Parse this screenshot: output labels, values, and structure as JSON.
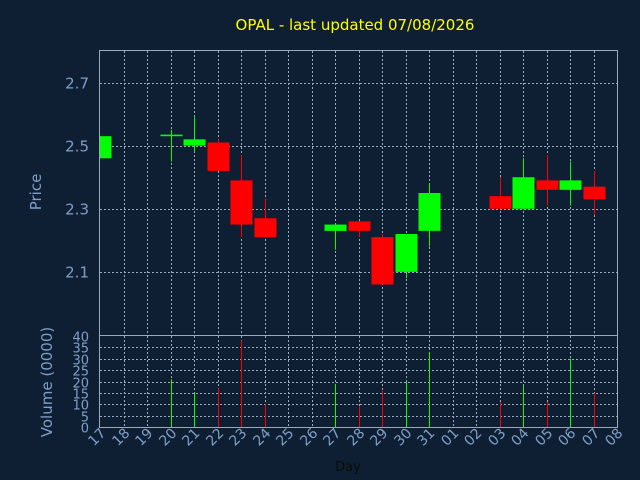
{
  "chart_data": {
    "type": "candlestick",
    "title": "OPAL - last updated 07/08/2026",
    "ylabel": "Price",
    "volume_label": "Volume (0000)",
    "xlabel": "Day",
    "up_color": "#00ff00",
    "down_color": "#ff0000",
    "price_ylim": [
      1.9,
      2.8
    ],
    "price_ticks": [
      2.1,
      2.3,
      2.5,
      2.7
    ],
    "volume_ylim": [
      0,
      40
    ],
    "volume_ticks": [
      0,
      5,
      10,
      15,
      20,
      25,
      30,
      35,
      40
    ],
    "grid": true,
    "x_tick_labels": [
      "17",
      "18",
      "19",
      "20",
      "21",
      "22",
      "23",
      "24",
      "25",
      "26",
      "27",
      "28",
      "29",
      "30",
      "31",
      "01",
      "02",
      "03",
      "04",
      "05",
      "06",
      "07",
      "08"
    ],
    "days": [
      {
        "label": "17",
        "open": 2.46,
        "high": 2.53,
        "low": 2.46,
        "close": 2.53,
        "volume": 0
      },
      {
        "label": "20",
        "open": 2.53,
        "high": 2.55,
        "low": 2.45,
        "close": 2.535,
        "volume": 21
      },
      {
        "label": "21",
        "open": 2.5,
        "high": 2.59,
        "low": 2.48,
        "close": 2.52,
        "volume": 15
      },
      {
        "label": "22",
        "open": 2.51,
        "high": 2.52,
        "low": 2.42,
        "close": 2.42,
        "volume": 17
      },
      {
        "label": "23",
        "open": 2.39,
        "high": 2.47,
        "low": 2.21,
        "close": 2.25,
        "volume": 38
      },
      {
        "label": "24",
        "open": 2.27,
        "high": 2.33,
        "low": 2.21,
        "close": 2.21,
        "volume": 10
      },
      {
        "label": "27",
        "open": 2.23,
        "high": 2.25,
        "low": 2.17,
        "close": 2.25,
        "volume": 19
      },
      {
        "label": "28",
        "open": 2.26,
        "high": 2.26,
        "low": 2.21,
        "close": 2.23,
        "volume": 9
      },
      {
        "label": "29",
        "open": 2.21,
        "high": 2.22,
        "low": 2.06,
        "close": 2.06,
        "volume": 16
      },
      {
        "label": "30",
        "open": 2.1,
        "high": 2.22,
        "low": 2.08,
        "close": 2.22,
        "volume": 20
      },
      {
        "label": "31",
        "open": 2.23,
        "high": 2.38,
        "low": 2.18,
        "close": 2.35,
        "volume": 33
      },
      {
        "label": "03",
        "open": 2.34,
        "high": 2.4,
        "low": 2.3,
        "close": 2.3,
        "volume": 11
      },
      {
        "label": "04",
        "open": 2.3,
        "high": 2.46,
        "low": 2.3,
        "close": 2.4,
        "volume": 18
      },
      {
        "label": "05",
        "open": 2.39,
        "high": 2.47,
        "low": 2.31,
        "close": 2.36,
        "volume": 11
      },
      {
        "label": "06",
        "open": 2.36,
        "high": 2.45,
        "low": 2.31,
        "close": 2.39,
        "volume": 30
      },
      {
        "label": "07",
        "open": 2.37,
        "high": 2.42,
        "low": 2.28,
        "close": 2.33,
        "volume": 15
      }
    ]
  }
}
